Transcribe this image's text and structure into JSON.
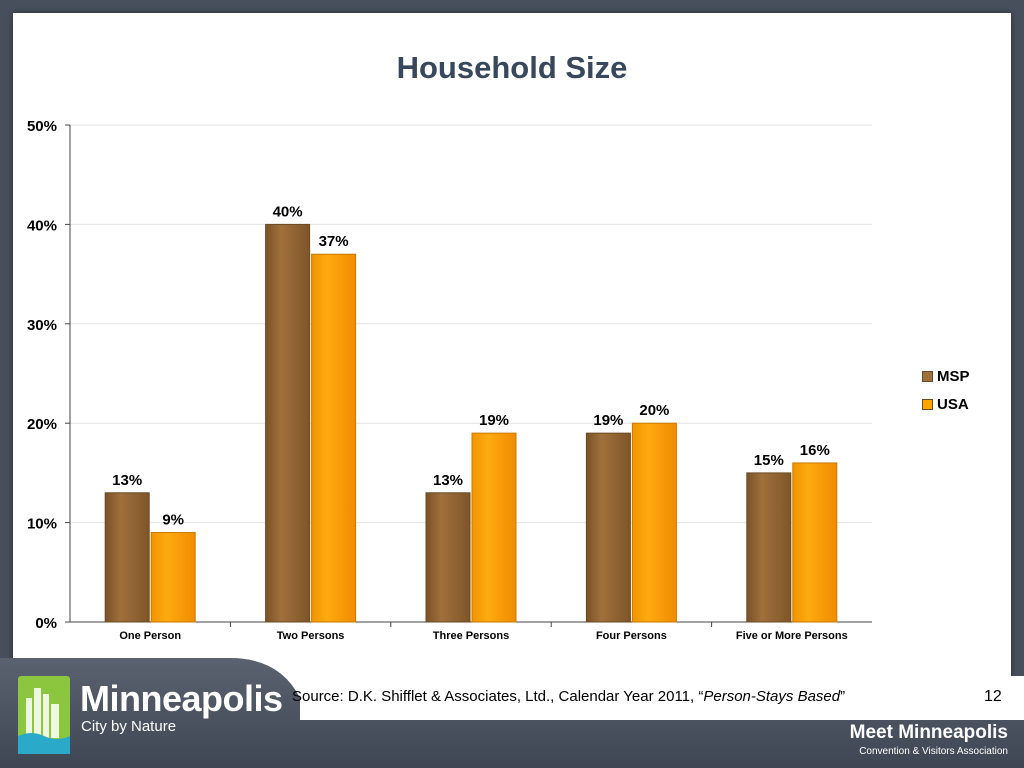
{
  "slide": {
    "source_prefix": "Source: D.K. Shifflet & Associates, Ltd., Calendar Year 2011, “",
    "source_emphasis": "Person-Stays Based",
    "source_suffix": "”",
    "page_number": "12"
  },
  "brand": {
    "title": "Minneapolis",
    "tagline": "City by Nature",
    "meet_title": "Meet Minneapolis",
    "meet_subtitle": "Convention & Visitors Association"
  },
  "colors": {
    "msp": "#a0703c",
    "usa": "#ffa500",
    "title": "#37475c",
    "frame": "#474f5c",
    "logo_green": "#8cc63f"
  },
  "chart_data": {
    "type": "bar",
    "title": "Household Size",
    "categories": [
      "One Person",
      "Two Persons",
      "Three Persons",
      "Four Persons",
      "Five or More Persons"
    ],
    "series": [
      {
        "name": "MSP",
        "values": [
          13,
          40,
          13,
          19,
          15
        ],
        "labels": [
          "13%",
          "40%",
          "13%",
          "19%",
          "15%"
        ]
      },
      {
        "name": "USA",
        "values": [
          9,
          37,
          19,
          20,
          16
        ],
        "labels": [
          "9%",
          "37%",
          "19%",
          "20%",
          "16%"
        ]
      }
    ],
    "ylim": [
      0,
      50
    ],
    "yticks": [
      0,
      10,
      20,
      30,
      40,
      50
    ],
    "ytick_labels": [
      "0%",
      "10%",
      "20%",
      "30%",
      "40%",
      "50%"
    ],
    "grid": true,
    "legend": "right"
  }
}
